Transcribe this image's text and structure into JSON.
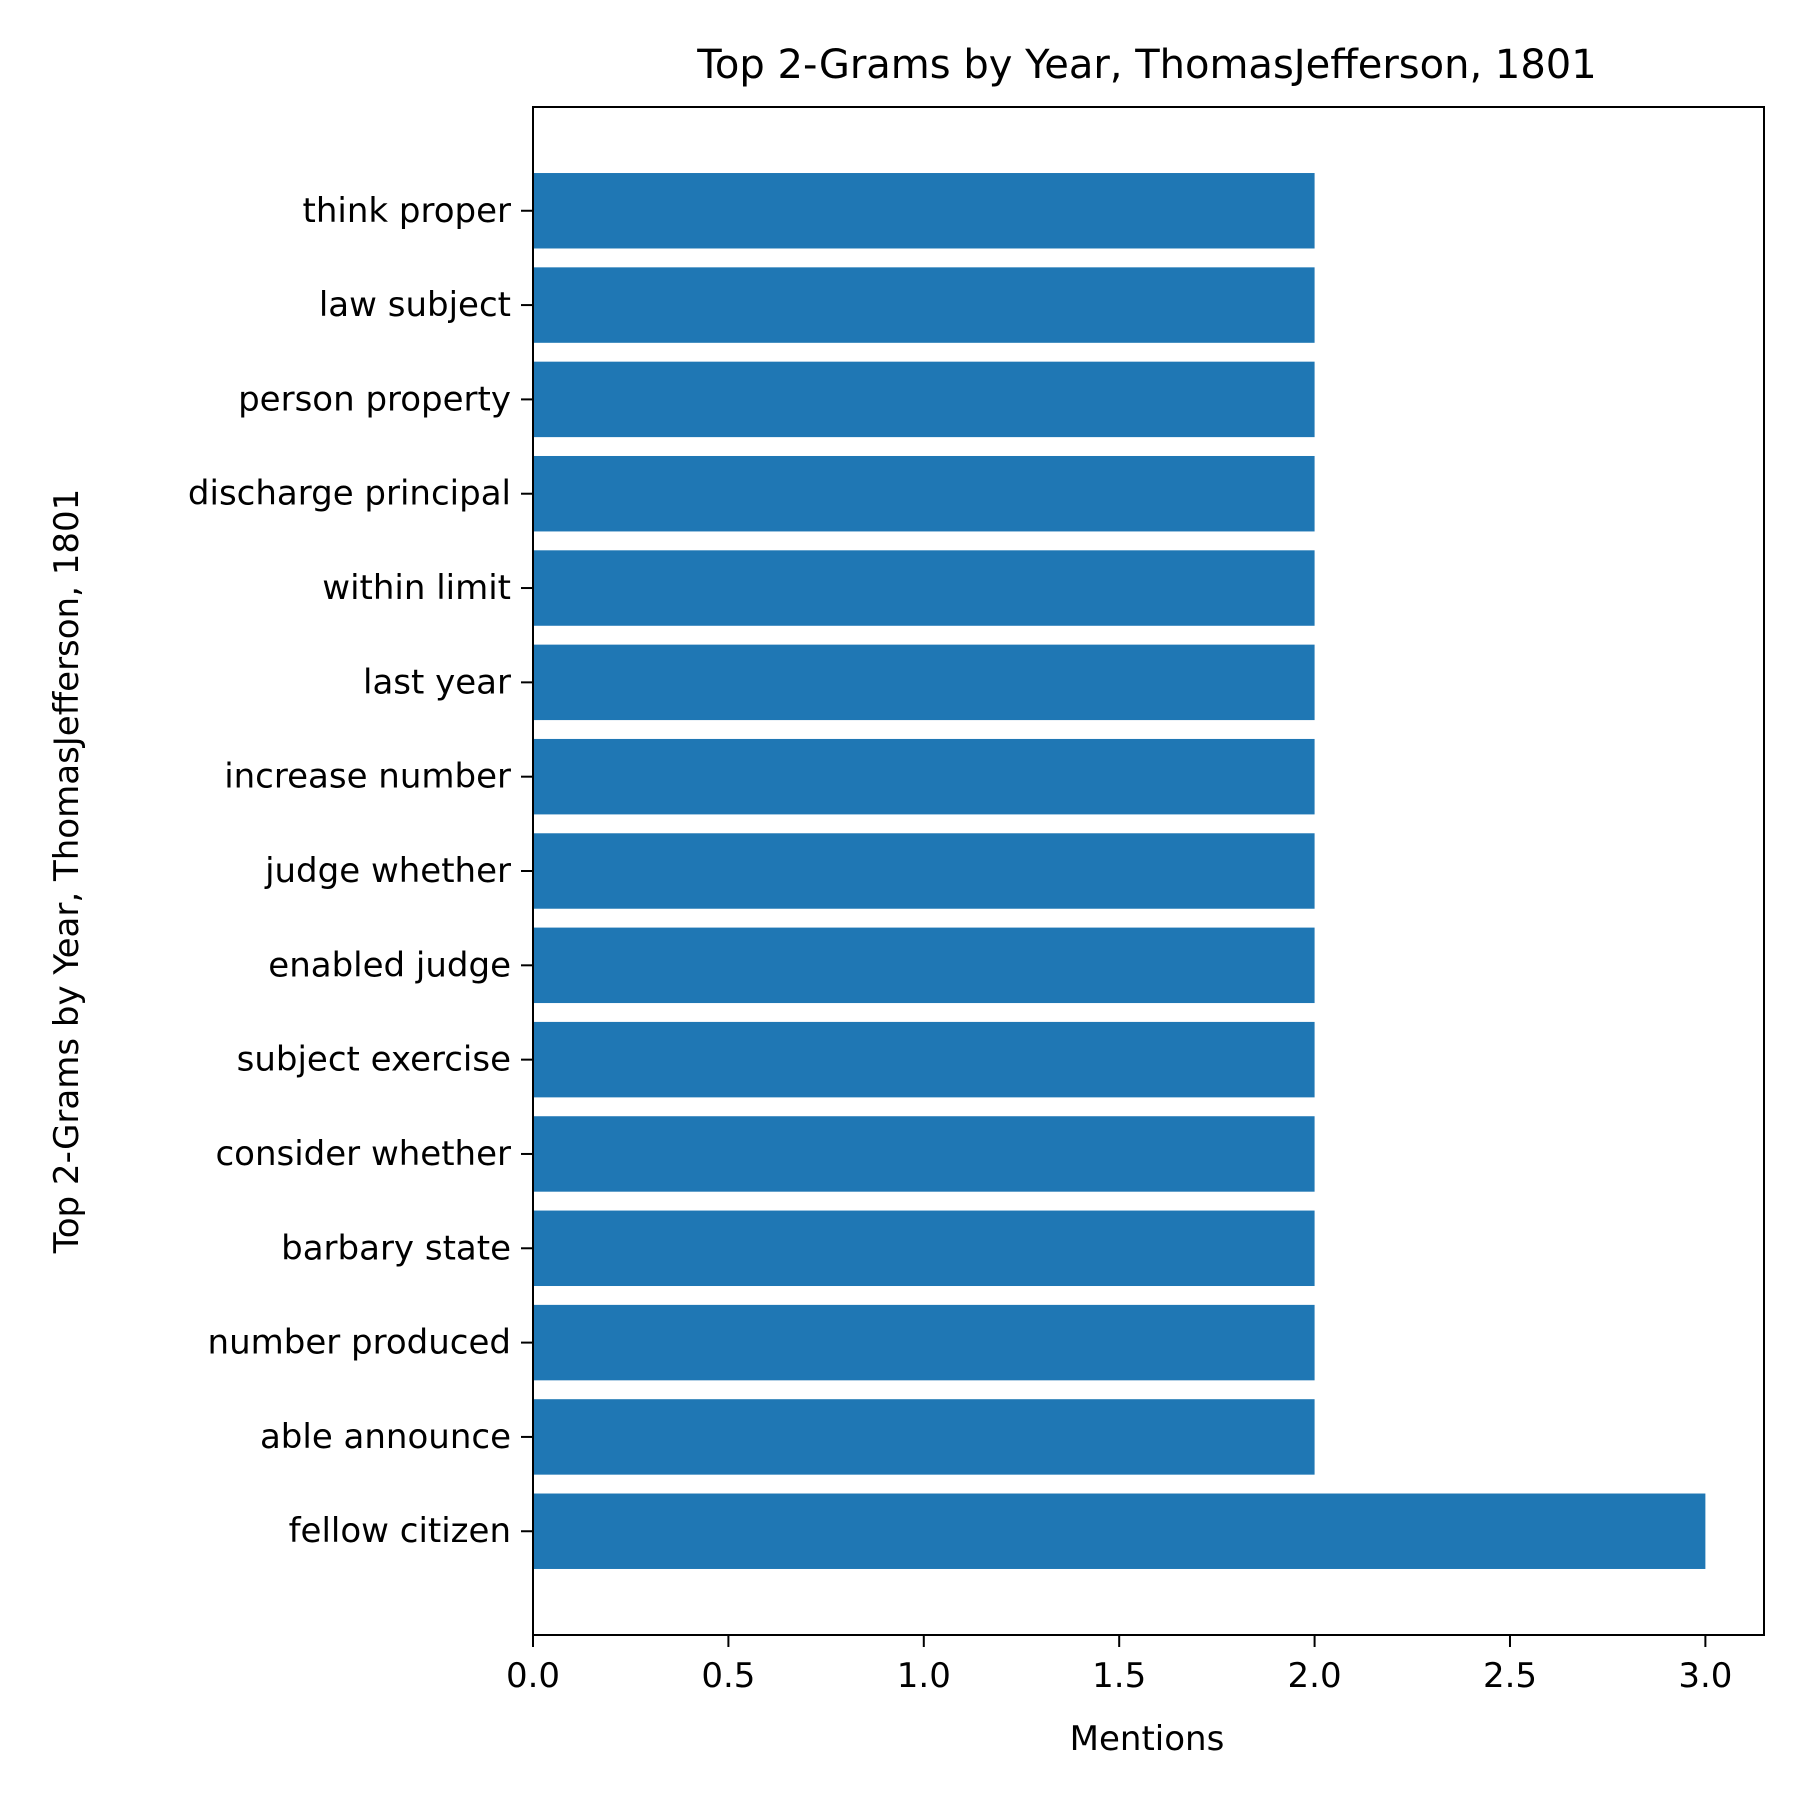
{
  "chart_data": {
    "type": "bar",
    "orientation": "horizontal",
    "title": "Top 2-Grams by Year, ThomasJefferson, 1801",
    "xlabel": "Mentions",
    "ylabel": "Top 2-Grams by Year, ThomasJefferson, 1801",
    "categories": [
      "fellow citizen",
      "able announce",
      "number produced",
      "barbary state",
      "consider whether",
      "subject exercise",
      "enabled judge",
      "judge whether",
      "increase number",
      "last year",
      "within limit",
      "discharge principal",
      "person property",
      "law subject",
      "think proper"
    ],
    "values": [
      3,
      2,
      2,
      2,
      2,
      2,
      2,
      2,
      2,
      2,
      2,
      2,
      2,
      2,
      2
    ],
    "xlim": [
      0,
      3.15
    ],
    "xticks": [
      0.0,
      0.5,
      1.0,
      1.5,
      2.0,
      2.5,
      3.0
    ],
    "xtick_labels": [
      "0.0",
      "0.5",
      "1.0",
      "1.5",
      "2.0",
      "2.5",
      "3.0"
    ],
    "grid": false,
    "bar_color": "#1f77b4"
  }
}
